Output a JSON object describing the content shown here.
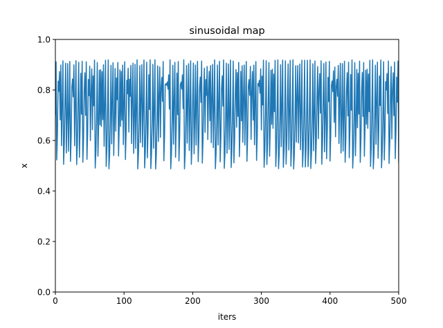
{
  "chart_data": {
    "type": "line",
    "title": "sinusoidal map",
    "xlabel": "iters",
    "ylabel": "x",
    "xlim": [
      0,
      500
    ],
    "ylim": [
      0,
      1
    ],
    "xticks": [
      0,
      100,
      200,
      300,
      400,
      500
    ],
    "yticks": [
      0.0,
      0.2,
      0.4,
      0.6,
      0.8,
      1.0
    ],
    "xtick_labels": [
      "0",
      "100",
      "200",
      "300",
      "400",
      "500"
    ],
    "ytick_labels": [
      "0.0",
      "0.2",
      "0.4",
      "0.6",
      "0.8",
      "1.0"
    ],
    "grid": false,
    "series": [
      {
        "color": "#1f77b4",
        "generator": {
          "kind": "sinusoidal_map",
          "a": 2.3,
          "x0": 0.7,
          "n": 501
        }
      }
    ]
  }
}
